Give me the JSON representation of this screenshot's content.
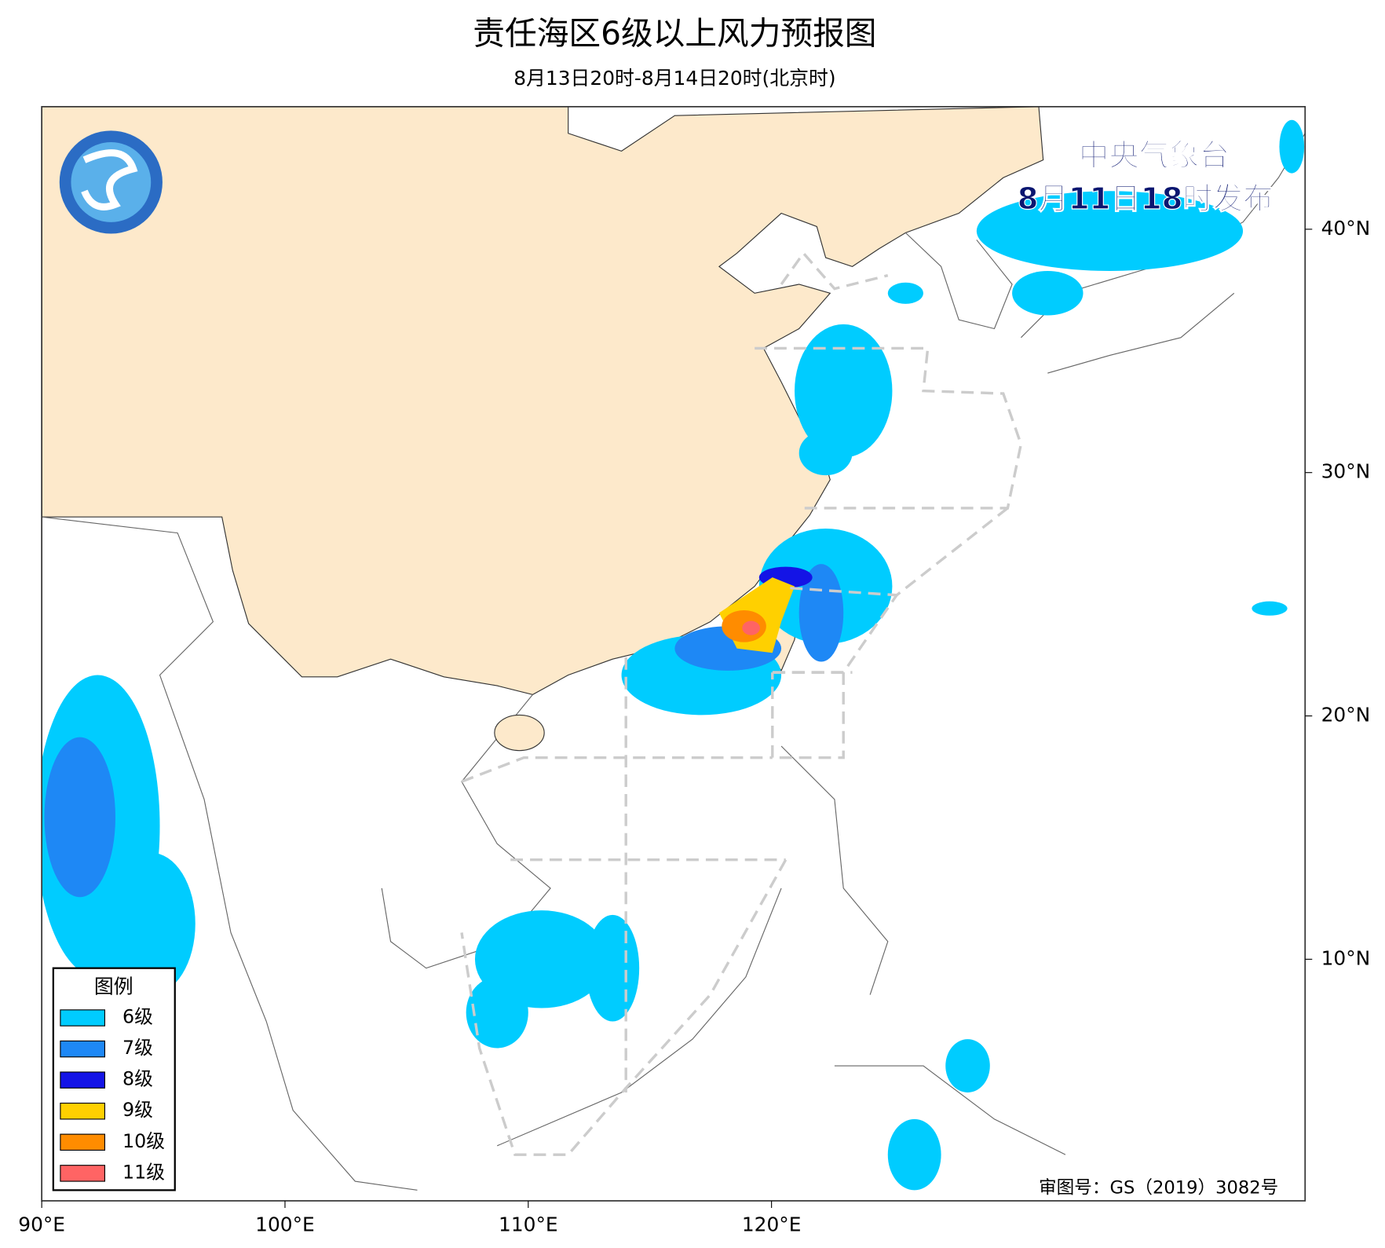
{
  "header": {
    "title": "责任海区6级以上风力预报图",
    "subtitle": "8月13日20时-8月14日20时(北京时)"
  },
  "issuer": {
    "name": "中央气象台",
    "time": "8月11日18时发布"
  },
  "map": {
    "x_labels": [
      "90°E",
      "100°E",
      "110°E",
      "120°E"
    ],
    "y_labels": [
      "40°N",
      "30°N",
      "20°N",
      "10°N"
    ]
  },
  "legend": {
    "title": "图例",
    "items": [
      {
        "label": "6级",
        "color": "#00ccff"
      },
      {
        "label": "7级",
        "color": "#1e88f5"
      },
      {
        "label": "8级",
        "color": "#1414e6"
      },
      {
        "label": "9级",
        "color": "#ffd000"
      },
      {
        "label": "10级",
        "color": "#ff8c00"
      },
      {
        "label": "11级",
        "color": "#ff6464"
      }
    ]
  },
  "approval": "审图号：GS（2019）3082号"
}
